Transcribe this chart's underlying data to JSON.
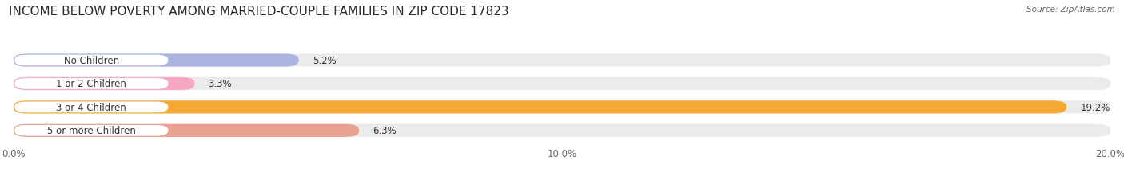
{
  "title": "INCOME BELOW POVERTY AMONG MARRIED-COUPLE FAMILIES IN ZIP CODE 17823",
  "source": "Source: ZipAtlas.com",
  "categories": [
    "No Children",
    "1 or 2 Children",
    "3 or 4 Children",
    "5 or more Children"
  ],
  "values": [
    5.2,
    3.3,
    19.2,
    6.3
  ],
  "bar_colors": [
    "#aab4df",
    "#f5a8c0",
    "#f5a832",
    "#e8a090"
  ],
  "xlim": [
    0,
    20.0
  ],
  "xticks": [
    0.0,
    10.0,
    20.0
  ],
  "xtick_labels": [
    "0.0%",
    "10.0%",
    "20.0%"
  ],
  "background_color": "#ffffff",
  "bar_bg_color": "#ebebeb",
  "title_fontsize": 11,
  "label_fontsize": 8.5,
  "tick_fontsize": 8.5,
  "bar_height": 0.55,
  "bar_gap": 1.0
}
